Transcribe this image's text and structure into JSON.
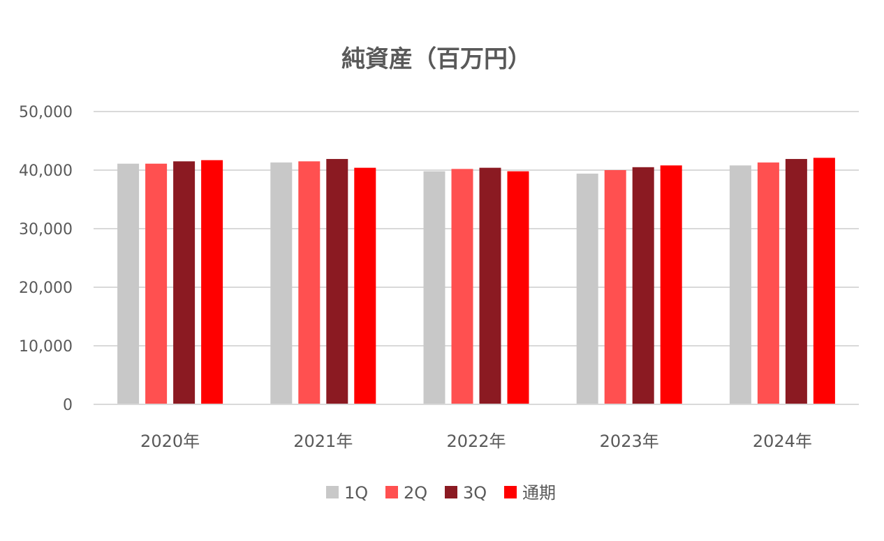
{
  "chart_data": {
    "type": "bar",
    "title": "純資産（百万円）",
    "xlabel": "",
    "ylabel": "",
    "categories": [
      "2020年",
      "2021年",
      "2022年",
      "2023年",
      "2024年"
    ],
    "yticks": [
      "0",
      "10,000",
      "20,000",
      "30,000",
      "40,000",
      "50,000"
    ],
    "ylim": [
      0,
      50000
    ],
    "grid": true,
    "legend_position": "bottom",
    "series": [
      {
        "name": "1Q",
        "color": "#c8c8c8",
        "values": [
          41100,
          41300,
          39800,
          39400,
          40800
        ]
      },
      {
        "name": "2Q",
        "color": "#ff5050",
        "values": [
          41100,
          41500,
          40200,
          40000,
          41300
        ]
      },
      {
        "name": "3Q",
        "color": "#8b1a22",
        "values": [
          41500,
          41900,
          40400,
          40500,
          41900
        ]
      },
      {
        "name": "通期",
        "color": "#ff0000",
        "values": [
          41700,
          40400,
          39800,
          40800,
          42100
        ]
      }
    ]
  }
}
